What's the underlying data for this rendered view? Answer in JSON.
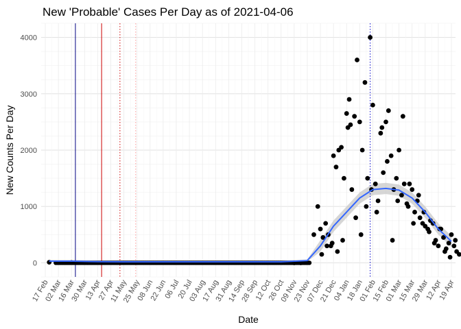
{
  "chart_data": {
    "type": "scatter",
    "title": "New 'Probable' Cases Per Day as of 2021-04-06",
    "xlabel": "Date",
    "ylabel": "New Counts Per Day",
    "ylim": [
      -250,
      4250
    ],
    "y_ticks": [
      0,
      1000,
      2000,
      3000,
      4000
    ],
    "x_ticks": [
      "17 Feb",
      "02 Mar",
      "16 Mar",
      "30 Mar",
      "13 Apr",
      "27 Apr",
      "11 May",
      "25 May",
      "08 Jun",
      "22 Jun",
      "06 Jul",
      "20 Jul",
      "03 Aug",
      "17 Aug",
      "31 Aug",
      "14 Sep",
      "28 Sep",
      "12 Oct",
      "26 Oct",
      "09 Nov",
      "23 Nov",
      "07 Dec",
      "21 Dec",
      "04 Jan",
      "18 Jan",
      "01 Feb",
      "15 Feb",
      "01 Mar",
      "15 Mar",
      "29 Mar",
      "12 Apr",
      "19 Apr"
    ],
    "grid": true,
    "colors": {
      "points": "#000000",
      "smooth": "#3366ff",
      "ribbon": "#c8c8c8",
      "vline_navy": "#000080",
      "vline_red": "#cc0000",
      "vline_pink": "#ff9999",
      "vline_blue_dotted": "#0000cc"
    },
    "reference_lines": [
      {
        "x_index": 2.3,
        "color": "#000080",
        "style": "solid"
      },
      {
        "x_index": 4.3,
        "color": "#cc0000",
        "style": "solid"
      },
      {
        "x_index": 5.7,
        "color": "#cc0000",
        "style": "dotted"
      },
      {
        "x_index": 6.9,
        "color": "#ff9999",
        "style": "dotted"
      },
      {
        "x_index": 24.8,
        "color": "#0000cc",
        "style": "dotted"
      }
    ],
    "smooth_line": [
      [
        0.3,
        30
      ],
      [
        2,
        30
      ],
      [
        4,
        20
      ],
      [
        6,
        18
      ],
      [
        10,
        18
      ],
      [
        14,
        18
      ],
      [
        18,
        18
      ],
      [
        20,
        40
      ],
      [
        21,
        300
      ],
      [
        22,
        650
      ],
      [
        23,
        900
      ],
      [
        24,
        1150
      ],
      [
        25,
        1300
      ],
      [
        26,
        1320
      ],
      [
        27,
        1290
      ],
      [
        28,
        1150
      ],
      [
        29,
        900
      ],
      [
        30,
        600
      ],
      [
        31,
        380
      ]
    ],
    "series": [
      {
        "x": [
          0.3,
          2.0,
          19.0,
          19.5,
          20.5,
          20.8,
          21.0,
          21.2,
          21.4,
          21.6,
          21.8,
          22.0,
          22.2,
          22.4,
          22.6,
          22.8,
          23.0,
          23.1,
          23.2,
          23.4,
          23.6,
          23.8,
          24.0,
          24.2,
          24.4,
          24.6,
          24.8,
          25.0,
          25.2,
          25.4,
          25.6,
          25.8,
          26.0,
          26.2,
          26.4,
          26.6,
          26.8,
          27.0,
          27.2,
          27.4,
          27.6,
          27.8,
          28.0,
          28.2,
          28.4,
          28.6,
          28.8,
          29.0,
          29.2,
          29.4,
          29.6,
          29.8,
          30.0,
          30.2,
          30.4,
          30.6,
          30.8,
          31.0,
          31.2,
          31.4,
          31.6,
          21.1,
          21.5,
          21.9,
          22.3,
          22.7,
          23.3,
          23.7,
          24.1,
          24.5,
          24.9,
          25.3,
          25.7,
          26.1,
          26.5,
          26.9,
          27.3,
          27.7,
          28.1,
          28.5,
          28.9,
          29.3,
          29.7,
          30.1,
          30.5,
          30.9,
          31.3
        ],
        "y": [
          10,
          5,
          0,
          0,
          500,
          1000,
          600,
          450,
          700,
          500,
          300,
          1900,
          1700,
          2000,
          2050,
          1500,
          2650,
          2400,
          2900,
          1300,
          2600,
          3600,
          2500,
          2000,
          3200,
          1500,
          4000,
          2800,
          1400,
          1100,
          2300,
          1600,
          2500,
          2700,
          1900,
          1300,
          1500,
          2000,
          1200,
          1400,
          1050,
          1400,
          1300,
          900,
          1100,
          800,
          700,
          650,
          600,
          750,
          700,
          400,
          300,
          600,
          450,
          250,
          350,
          500,
          300,
          200,
          150,
          150,
          300,
          350,
          200,
          400,
          2450,
          800,
          500,
          1000,
          1300,
          900,
          2400,
          1800,
          400,
          1100,
          2600,
          1000,
          700,
          1200,
          900,
          550,
          350,
          600,
          200,
          100,
          400
        ]
      }
    ],
    "flat_points": {
      "x_start": 0.8,
      "x_end": 20.2,
      "y": 0
    }
  }
}
